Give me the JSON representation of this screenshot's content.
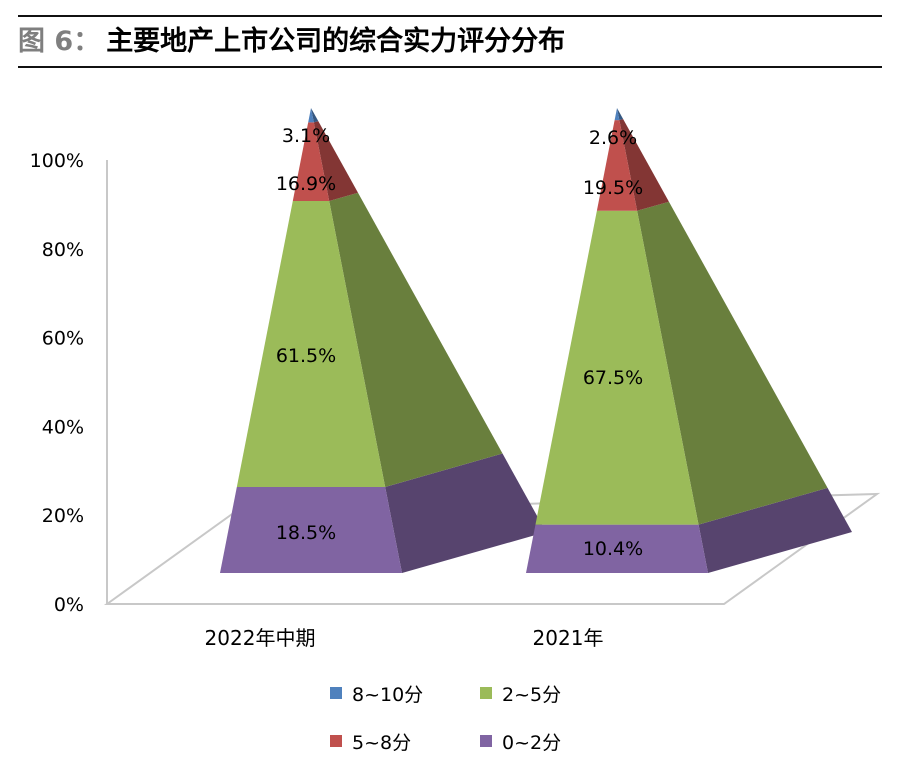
{
  "title": {
    "prefix": "图 6",
    "colon": "：",
    "text": "主要地产上市公司的综合实力评分分布"
  },
  "chart_data": {
    "type": "pyramid-3d-stacked",
    "categories": [
      "2022年中期",
      "2021年"
    ],
    "y_ticks": [
      "0%",
      "20%",
      "40%",
      "60%",
      "80%",
      "100%"
    ],
    "ylim": [
      0,
      100
    ],
    "series": [
      {
        "name": "0~2分",
        "color": "#8064a2",
        "values": [
          18.5,
          10.4
        ],
        "labels": [
          "18.5%",
          "10.4%"
        ]
      },
      {
        "name": "2~5分",
        "color": "#9bbb59",
        "values": [
          61.5,
          67.5
        ],
        "labels": [
          "61.5%",
          "67.5%"
        ]
      },
      {
        "name": "5~8分",
        "color": "#c0504d",
        "values": [
          16.9,
          19.5
        ],
        "labels": [
          "16.9%",
          "19.5%"
        ]
      },
      {
        "name": "8~10分",
        "color": "#4f81bd",
        "values": [
          3.1,
          2.6
        ],
        "labels": [
          "3.1%",
          "2.6%"
        ]
      }
    ]
  },
  "legend": [
    {
      "label": "8~10分",
      "color": "#4f81bd"
    },
    {
      "label": "2~5分",
      "color": "#9bbb59"
    },
    {
      "label": "5~8分",
      "color": "#c0504d"
    },
    {
      "label": "0~2分",
      "color": "#8064a2"
    }
  ]
}
